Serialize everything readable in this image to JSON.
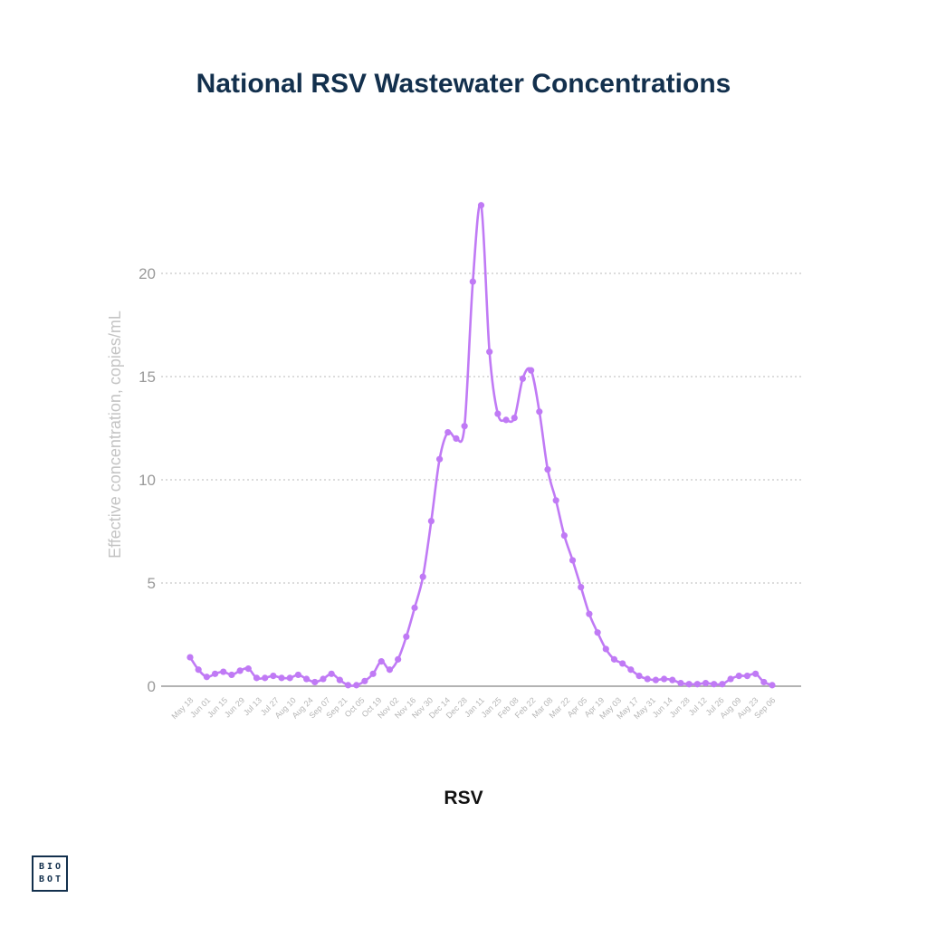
{
  "colors": {
    "title": "#13304d",
    "series": "#c07af5",
    "axis": "#9a9a9a",
    "grid": "#c8c8c8",
    "tick_text": "#9a9a9a",
    "ylabel_text": "#c4c4c4",
    "logo": "#13304d"
  },
  "logo": {
    "line1": "BIO",
    "line2": "BOT"
  },
  "chart_data": {
    "type": "line",
    "title": "National RSV Wastewater Concentrations",
    "xlabel": "RSV",
    "ylabel": "Effective concentration, copies/mL",
    "ylim": [
      0,
      24
    ],
    "yticks": [
      0,
      5,
      10,
      15,
      20
    ],
    "grid": true,
    "legend": "none",
    "x_tick_labels": [
      "May 18",
      "Jun 01",
      "Jun 15",
      "Jun 29",
      "Jul 13",
      "Jul 27",
      "Aug 10",
      "Aug 24",
      "Sep 07",
      "Sep 21",
      "Oct 05",
      "Oct 19",
      "Nov 02",
      "Nov 16",
      "Nov 30",
      "Dec 14",
      "Dec 28",
      "Jan 11",
      "Jan 25",
      "Feb 08",
      "Feb 22",
      "Mar 08",
      "Mar 22",
      "Apr 05",
      "Apr 19",
      "May 03",
      "May 17",
      "May 31",
      "Jun 14",
      "Jun 28",
      "Jul 12",
      "Jul 26",
      "Aug 09",
      "Aug 23",
      "Sep 06"
    ],
    "series": [
      {
        "name": "RSV",
        "values": [
          1.4,
          0.8,
          0.45,
          0.6,
          0.7,
          0.55,
          0.75,
          0.85,
          0.4,
          0.4,
          0.5,
          0.4,
          0.4,
          0.55,
          0.35,
          0.2,
          0.35,
          0.6,
          0.3,
          0.05,
          0.05,
          0.25,
          0.6,
          1.2,
          0.8,
          1.3,
          2.4,
          3.8,
          5.3,
          8.0,
          11.0,
          12.3,
          12.0,
          12.6,
          19.6,
          23.3,
          16.2,
          13.2,
          12.9,
          13.0,
          14.9,
          15.3,
          13.3,
          10.5,
          9.0,
          7.3,
          6.1,
          4.8,
          3.5,
          2.6,
          1.8,
          1.3,
          1.1,
          0.8,
          0.5,
          0.35,
          0.3,
          0.35,
          0.3,
          0.15,
          0.1,
          0.1,
          0.15,
          0.1,
          0.1,
          0.35,
          0.5,
          0.5,
          0.6,
          0.2,
          0.05
        ]
      }
    ]
  }
}
